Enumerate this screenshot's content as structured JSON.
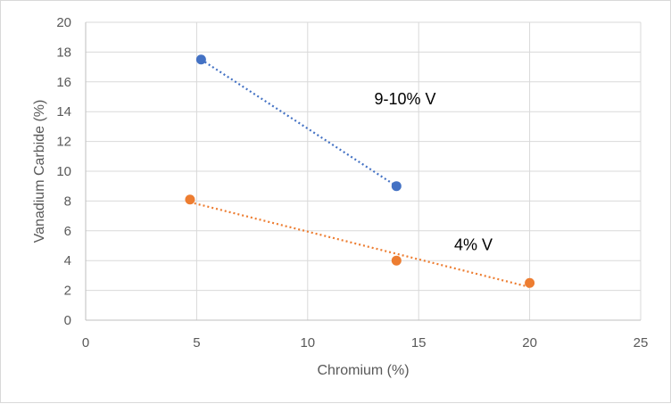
{
  "chart_data": {
    "type": "scatter",
    "title": "",
    "xlabel": "Chromium (%)",
    "ylabel": "Vanadium Carbide (%)",
    "xlim": [
      0,
      25
    ],
    "ylim": [
      0,
      20
    ],
    "x_ticks": [
      "0",
      "5",
      "10",
      "15",
      "20",
      "25"
    ],
    "y_ticks": [
      "0",
      "2",
      "4",
      "6",
      "8",
      "10",
      "12",
      "14",
      "16",
      "18",
      "20"
    ],
    "grid": true,
    "legend": "none",
    "series": [
      {
        "color": "#4472c4",
        "trendline": "linear-dotted",
        "points": [
          {
            "x": 5.2,
            "y": 17.5
          },
          {
            "x": 14.0,
            "y": 9.0
          }
        ]
      },
      {
        "color": "#ed7d31",
        "trendline": "linear-dotted",
        "points": [
          {
            "x": 4.7,
            "y": 8.1
          },
          {
            "x": 14.0,
            "y": 4.0
          },
          {
            "x": 20.0,
            "y": 2.5
          }
        ]
      }
    ],
    "annotations": [
      {
        "text": "9-10% V",
        "x": 13.0,
        "y": 14.5
      },
      {
        "text": "4% V",
        "x": 16.6,
        "y": 4.7
      }
    ]
  }
}
